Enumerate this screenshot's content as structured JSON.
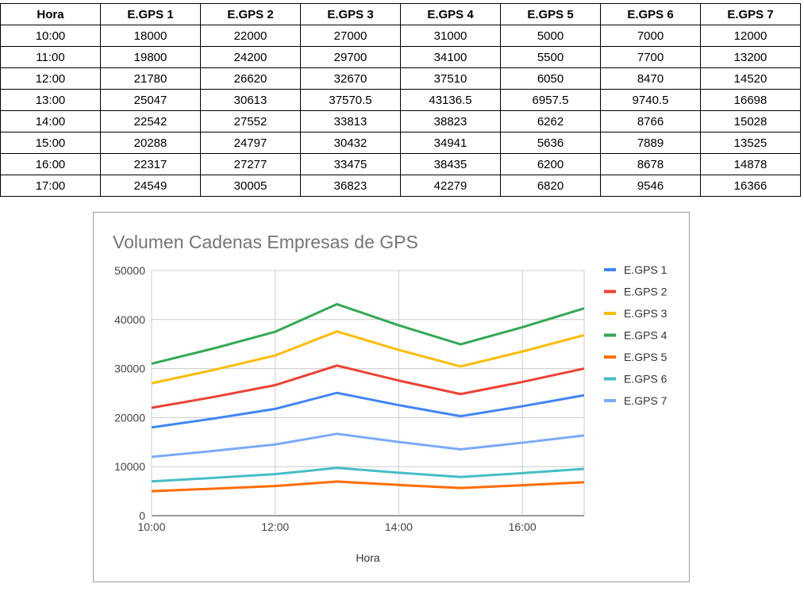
{
  "table": {
    "headers": [
      "Hora",
      "E.GPS 1",
      "E.GPS 2",
      "E.GPS 3",
      "E.GPS 4",
      "E.GPS 5",
      "E.GPS 6",
      "E.GPS 7"
    ],
    "rows": [
      [
        "10:00",
        "18000",
        "22000",
        "27000",
        "31000",
        "5000",
        "7000",
        "12000"
      ],
      [
        "11:00",
        "19800",
        "24200",
        "29700",
        "34100",
        "5500",
        "7700",
        "13200"
      ],
      [
        "12:00",
        "21780",
        "26620",
        "32670",
        "37510",
        "6050",
        "8470",
        "14520"
      ],
      [
        "13:00",
        "25047",
        "30613",
        "37570.5",
        "43136.5",
        "6957.5",
        "9740.5",
        "16698"
      ],
      [
        "14:00",
        "22542",
        "27552",
        "33813",
        "38823",
        "6262",
        "8766",
        "15028"
      ],
      [
        "15:00",
        "20288",
        "24797",
        "30432",
        "34941",
        "5636",
        "7889",
        "13525"
      ],
      [
        "16:00",
        "22317",
        "27277",
        "33475",
        "38435",
        "6200",
        "8678",
        "14878"
      ],
      [
        "17:00",
        "24549",
        "30005",
        "36823",
        "42279",
        "6820",
        "9546",
        "16366"
      ]
    ]
  },
  "chart_data": {
    "type": "line",
    "title": "Volumen Cadenas Empresas de GPS",
    "xlabel": "Hora",
    "ylabel": "",
    "x": [
      "10:00",
      "11:00",
      "12:00",
      "13:00",
      "14:00",
      "15:00",
      "16:00",
      "17:00"
    ],
    "x_ticks": [
      "10:00",
      "12:00",
      "14:00",
      "16:00"
    ],
    "ylim": [
      0,
      50000
    ],
    "y_ticks": [
      0,
      10000,
      20000,
      30000,
      40000,
      50000
    ],
    "grid": true,
    "legend_position": "right",
    "series": [
      {
        "name": "E.GPS 1",
        "color": "#4285f4",
        "values": [
          18000,
          19800,
          21780,
          25047,
          22542,
          20288,
          22317,
          24549
        ]
      },
      {
        "name": "E.GPS 2",
        "color": "#ea4335",
        "values": [
          22000,
          24200,
          26620,
          30613,
          27552,
          24797,
          27277,
          30005
        ]
      },
      {
        "name": "E.GPS 3",
        "color": "#fbbc04",
        "values": [
          27000,
          29700,
          32670,
          37570.5,
          33813,
          30432,
          33475,
          36823
        ]
      },
      {
        "name": "E.GPS 4",
        "color": "#34a853",
        "values": [
          31000,
          34100,
          37510,
          43136.5,
          38823,
          34941,
          38435,
          42279
        ]
      },
      {
        "name": "E.GPS 5",
        "color": "#ff6d01",
        "values": [
          5000,
          5500,
          6050,
          6957.5,
          6262,
          5636,
          6200,
          6820
        ]
      },
      {
        "name": "E.GPS 6",
        "color": "#46bdc6",
        "values": [
          7000,
          7700,
          8470,
          9740.5,
          8766,
          7889,
          8678,
          9546
        ]
      },
      {
        "name": "E.GPS 7",
        "color": "#7baaf7",
        "values": [
          12000,
          13200,
          14520,
          16698,
          15028,
          13525,
          14878,
          16366
        ]
      }
    ]
  }
}
